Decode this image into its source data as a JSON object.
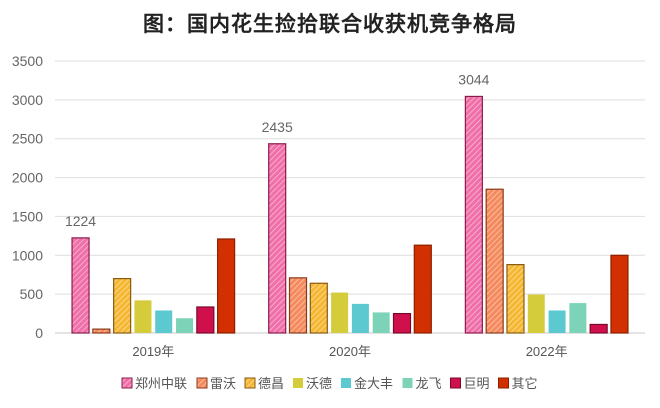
{
  "chart_data": {
    "type": "bar",
    "title": "图：国内花生捡拾联合收获机竞争格局",
    "xlabel": "",
    "ylabel": "",
    "ylim": [
      0,
      3500
    ],
    "yticks": [
      0,
      500,
      1000,
      1500,
      2000,
      2500,
      3000,
      3500
    ],
    "grid": true,
    "legend_position": "bottom",
    "categories": [
      "2019年",
      "2020年",
      "2022年"
    ],
    "series": [
      {
        "name": "郑州中联",
        "values": [
          1224,
          2435,
          3044
        ],
        "color": "#f06fa8",
        "stroke": "#8b1c4a",
        "hatched": true,
        "data_labels": [
          "1224",
          "2435",
          "3044"
        ]
      },
      {
        "name": "雷沃",
        "values": [
          50,
          710,
          1850
        ],
        "color": "#f58a5c",
        "stroke": "#8a3a1a",
        "hatched": true
      },
      {
        "name": "德昌",
        "values": [
          700,
          640,
          880
        ],
        "color": "#f5b731",
        "stroke": "#8a5a10",
        "hatched": true
      },
      {
        "name": "沃德",
        "values": [
          420,
          520,
          495
        ],
        "color": "#d4cc3a"
      },
      {
        "name": "金大丰",
        "values": [
          290,
          375,
          290
        ],
        "color": "#5cc8d0"
      },
      {
        "name": "龙飞",
        "values": [
          190,
          265,
          385
        ],
        "color": "#7dd3b8"
      },
      {
        "name": "巨明",
        "values": [
          335,
          250,
          110
        ],
        "color": "#d0104c",
        "stroke": "#7a0a2c"
      },
      {
        "name": "其它",
        "values": [
          1210,
          1130,
          1000
        ],
        "color": "#d23000",
        "stroke": "#8a2000"
      }
    ]
  }
}
